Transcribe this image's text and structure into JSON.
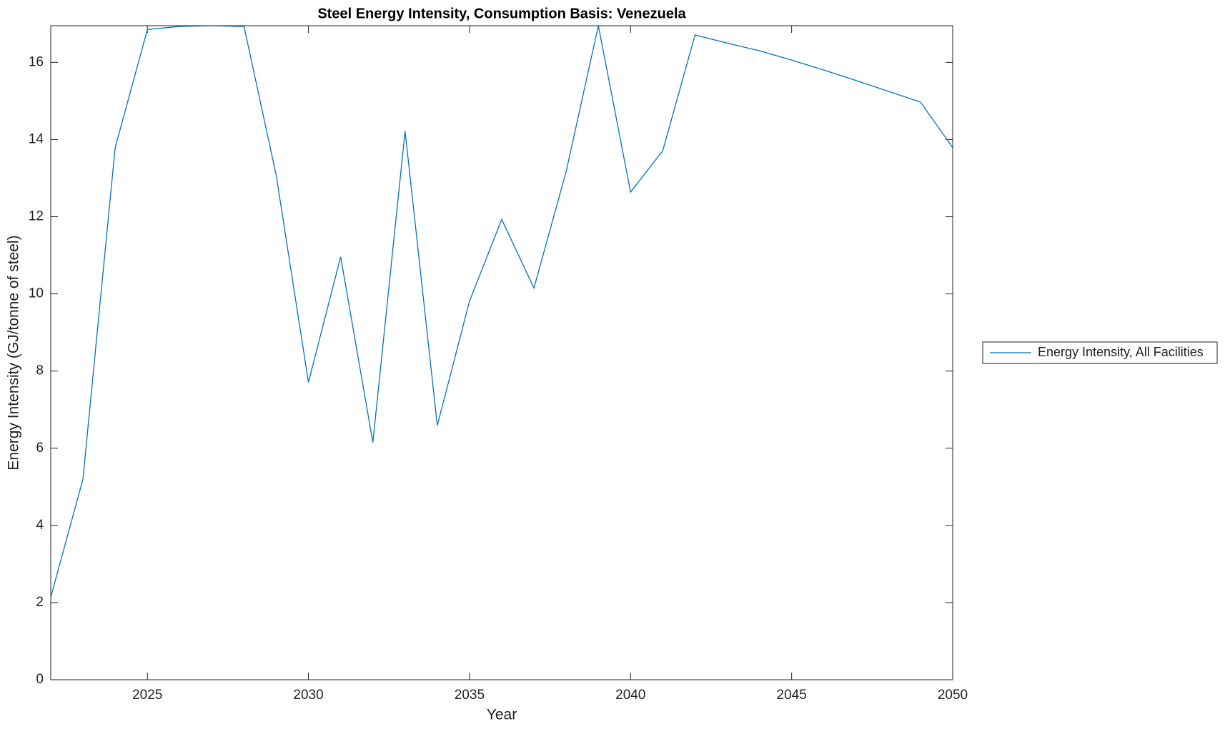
{
  "chart_data": {
    "type": "line",
    "title": "Steel Energy Intensity, Consumption Basis: Venezuela",
    "x_label": "Year",
    "y_label": "Energy Intensity (GJ/tonne of steel)",
    "x": [
      2022,
      2023,
      2024,
      2025,
      2026,
      2027,
      2028,
      2029,
      2030,
      2031,
      2032,
      2033,
      2034,
      2035,
      2036,
      2037,
      2038,
      2039,
      2040,
      2041,
      2042,
      2043,
      2044,
      2045,
      2046,
      2047,
      2048,
      2049,
      2050
    ],
    "series": [
      {
        "name": "Energy Intensity, All Facilities",
        "color": "#0072bd",
        "values": [
          2.14,
          5.2,
          13.79,
          16.85,
          16.93,
          16.95,
          16.93,
          13.07,
          7.71,
          10.96,
          6.15,
          14.22,
          6.59,
          9.81,
          11.93,
          10.15,
          13.17,
          16.95,
          12.64,
          13.71,
          16.71,
          16.5,
          16.3,
          16.06,
          15.8,
          15.53,
          15.25,
          14.97,
          13.79
        ]
      }
    ],
    "xlim": [
      2022,
      2050
    ],
    "ylim": [
      0,
      16.95
    ],
    "xticks": [
      2025,
      2030,
      2035,
      2040,
      2045,
      2050
    ],
    "yticks": [
      0,
      2,
      4,
      6,
      8,
      10,
      12,
      14,
      16
    ],
    "legend": "outside-right"
  }
}
